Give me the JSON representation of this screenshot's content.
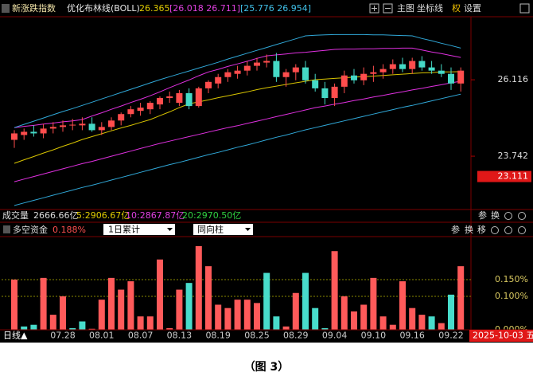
{
  "caption": "（图 3）",
  "volume_bar": {
    "label": "成交量",
    "total": "2666.66亿",
    "ma5": "5:2906.67亿",
    "ma10": "10:2867.87亿",
    "ma20": "20:2970.50亿",
    "buttons": [
      "参",
      "换"
    ]
  },
  "indicator_bar": {
    "label": "多空资金",
    "value": "0.188%",
    "dropdowns": [
      "1日累计",
      "同向柱"
    ],
    "buttons": [
      "参",
      "换",
      "移"
    ]
  },
  "chart_data": [
    {
      "type": "candlestick",
      "title": "新涨跌指数",
      "indicator": "优化布林线(BOLL)",
      "mid_label": "26.365",
      "inner_band_label": "[26.018 26.711]",
      "outer_band_label": "[25.776 26.954]",
      "toolbar": [
        "主图",
        "坐标线",
        "权",
        "设置"
      ],
      "up_color": "#ff4d4d",
      "down_color": "#45d9c6",
      "open": [
        24.25,
        24.4,
        24.5,
        24.45,
        24.6,
        24.65,
        24.7,
        24.7,
        24.75,
        24.55,
        24.65,
        24.85,
        25.05,
        25.15,
        25.2,
        25.35,
        25.55,
        25.4,
        25.7,
        25.3,
        25.85,
        26.0,
        26.2,
        26.3,
        26.4,
        26.55,
        26.65,
        26.7,
        26.2,
        26.35,
        26.5,
        26.1,
        25.85,
        25.55,
        25.9,
        26.25,
        26.1,
        26.3,
        26.35,
        26.45,
        26.6,
        26.45,
        26.7,
        26.5,
        26.4,
        26.3,
        26.0
      ],
      "high": [
        24.55,
        24.6,
        24.7,
        24.75,
        24.8,
        24.85,
        24.9,
        24.95,
        24.95,
        24.8,
        24.95,
        25.1,
        25.3,
        25.4,
        25.45,
        25.6,
        25.75,
        25.8,
        25.85,
        25.9,
        26.1,
        26.3,
        26.45,
        26.55,
        26.7,
        26.8,
        26.9,
        26.95,
        26.45,
        26.6,
        26.7,
        26.3,
        26.05,
        26.0,
        26.4,
        26.45,
        26.5,
        26.55,
        26.6,
        26.75,
        26.8,
        26.8,
        26.85,
        26.7,
        26.6,
        26.5,
        26.5
      ],
      "low": [
        24.0,
        24.25,
        24.35,
        24.3,
        24.45,
        24.5,
        24.55,
        24.55,
        24.5,
        24.4,
        24.55,
        24.7,
        24.95,
        25.0,
        25.05,
        25.2,
        25.4,
        25.3,
        25.2,
        25.25,
        25.7,
        25.85,
        26.05,
        26.15,
        26.25,
        26.4,
        26.5,
        26.05,
        25.9,
        26.1,
        26.0,
        25.75,
        25.35,
        25.3,
        25.7,
        26.0,
        25.95,
        26.05,
        26.15,
        26.3,
        26.35,
        26.3,
        26.4,
        26.3,
        26.2,
        25.8,
        25.75
      ],
      "close": [
        24.45,
        24.5,
        24.45,
        24.6,
        24.65,
        24.7,
        24.72,
        24.75,
        24.55,
        24.65,
        24.85,
        25.05,
        25.2,
        25.25,
        25.4,
        25.55,
        25.6,
        25.7,
        25.3,
        25.85,
        26.05,
        26.2,
        26.35,
        26.4,
        26.55,
        26.65,
        26.7,
        26.2,
        26.35,
        26.5,
        26.1,
        25.85,
        25.55,
        25.9,
        26.25,
        26.1,
        26.3,
        26.35,
        26.45,
        26.6,
        26.45,
        26.7,
        26.5,
        26.4,
        26.3,
        26.0,
        26.4
      ],
      "series": [
        {
          "color": "#d8c400",
          "values": [
            23.52,
            23.63,
            23.73,
            23.84,
            23.94,
            24.05,
            24.15,
            24.26,
            24.35,
            24.44,
            24.53,
            24.62,
            24.7,
            24.79,
            24.88,
            25.0,
            25.12,
            25.25,
            25.37,
            25.43,
            25.49,
            25.56,
            25.62,
            25.68,
            25.74,
            25.81,
            25.87,
            25.92,
            25.97,
            26.02,
            26.07,
            26.12,
            26.14,
            26.16,
            26.18,
            26.2,
            26.21,
            26.23,
            26.25,
            26.27,
            26.29,
            26.31,
            26.33,
            26.34,
            26.36,
            26.36,
            26.37
          ]
        },
        {
          "color": "#e030e0",
          "values": [
            24.63,
            24.67,
            24.7,
            24.74,
            24.77,
            24.81,
            24.84,
            24.88,
            24.99,
            25.09,
            25.2,
            25.3,
            25.41,
            25.51,
            25.62,
            25.74,
            25.87,
            25.99,
            26.11,
            26.24,
            26.36,
            26.44,
            26.53,
            26.61,
            26.69,
            26.78,
            26.86,
            26.89,
            26.92,
            26.95,
            26.97,
            27.0,
            27.03,
            27.06,
            27.07,
            27.07,
            27.08,
            27.08,
            27.09,
            27.09,
            27.1,
            27.1,
            27.04,
            26.98,
            26.93,
            26.87,
            26.81
          ]
        },
        {
          "color": "#e030e0",
          "values": [
            22.95,
            23.03,
            23.11,
            23.19,
            23.27,
            23.35,
            23.43,
            23.51,
            23.58,
            23.66,
            23.74,
            23.82,
            23.9,
            23.98,
            24.06,
            24.14,
            24.21,
            24.28,
            24.35,
            24.42,
            24.49,
            24.56,
            24.63,
            24.69,
            24.76,
            24.83,
            24.9,
            24.97,
            25.04,
            25.11,
            25.18,
            25.25,
            25.3,
            25.36,
            25.41,
            25.47,
            25.52,
            25.58,
            25.63,
            25.69,
            25.74,
            25.8,
            25.85,
            25.91,
            25.96,
            26.02,
            26.07
          ]
        },
        {
          "color": "#30a8d8",
          "values": [
            24.63,
            24.73,
            24.83,
            24.93,
            25.03,
            25.13,
            25.22,
            25.32,
            25.42,
            25.52,
            25.62,
            25.72,
            25.82,
            25.92,
            26.02,
            26.12,
            26.21,
            26.3,
            26.39,
            26.48,
            26.57,
            26.66,
            26.76,
            26.85,
            26.94,
            27.03,
            27.12,
            27.21,
            27.3,
            27.39,
            27.48,
            27.5,
            27.51,
            27.52,
            27.52,
            27.52,
            27.52,
            27.51,
            27.51,
            27.5,
            27.49,
            27.48,
            27.4,
            27.33,
            27.25,
            27.18,
            27.1
          ]
        },
        {
          "color": "#30a8d8",
          "values": [
            22.21,
            22.29,
            22.37,
            22.45,
            22.53,
            22.61,
            22.69,
            22.77,
            22.84,
            22.92,
            23.0,
            23.08,
            23.16,
            23.24,
            23.32,
            23.4,
            23.48,
            23.55,
            23.63,
            23.71,
            23.79,
            23.86,
            23.94,
            24.02,
            24.09,
            24.17,
            24.25,
            24.33,
            24.4,
            24.48,
            24.56,
            24.63,
            24.7,
            24.77,
            24.84,
            24.91,
            24.98,
            25.05,
            25.12,
            25.19,
            25.26,
            25.32,
            25.39,
            25.46,
            25.53,
            25.6,
            25.67
          ]
        }
      ],
      "ylim": [
        22.11,
        28.05
      ],
      "yticks": [
        26.116,
        23.742
      ],
      "highlight_tick": 23.111
    },
    {
      "type": "bar",
      "x_label": "日线▲",
      "cursor_label": "2025-10-03 五",
      "categories": [
        null,
        null,
        null,
        null,
        null,
        "07.28",
        null,
        null,
        null,
        "08.01",
        null,
        null,
        null,
        "08.07",
        null,
        null,
        null,
        "08.13",
        null,
        null,
        null,
        "08.19",
        null,
        null,
        null,
        "08.25",
        null,
        null,
        null,
        "08.29",
        null,
        null,
        null,
        "09.04",
        null,
        null,
        null,
        "09.10",
        null,
        null,
        null,
        "09.16",
        null,
        null,
        null,
        "09.22",
        null
      ],
      "values": [
        0.15,
        0.01,
        0.015,
        0.155,
        0.045,
        0.1,
        0.005,
        0.025,
        0.003,
        0.09,
        0.155,
        0.12,
        0.145,
        0.04,
        0.04,
        0.21,
        0.005,
        0.12,
        0.14,
        0.25,
        0.19,
        0.075,
        0.065,
        0.09,
        0.09,
        0.08,
        0.17,
        0.04,
        0.01,
        0.11,
        0.17,
        0.065,
        0.005,
        0.235,
        0.1,
        0.055,
        0.075,
        0.155,
        0.04,
        0.015,
        0.145,
        0.065,
        0.045,
        0.04,
        0.02,
        0.105,
        0.19
      ],
      "colors": [
        "#ff5a5a",
        "#48dccb",
        "#48dccb",
        "#ff5a5a",
        "#ff5a5a",
        "#ff5a5a",
        "#48dccb",
        "#48dccb",
        "#ff5a5a",
        "#ff5a5a",
        "#ff5a5a",
        "#ff5a5a",
        "#ff5a5a",
        "#ff5a5a",
        "#ff5a5a",
        "#ff5a5a",
        "#ff5a5a",
        "#ff5a5a",
        "#48dccb",
        "#ff5a5a",
        "#ff5a5a",
        "#ff5a5a",
        "#ff5a5a",
        "#ff5a5a",
        "#ff5a5a",
        "#ff5a5a",
        "#48dccb",
        "#48dccb",
        "#ff5a5a",
        "#ff5a5a",
        "#48dccb",
        "#48dccb",
        "#48dccb",
        "#ff5a5a",
        "#ff5a5a",
        "#ff5a5a",
        "#ff5a5a",
        "#ff5a5a",
        "#ff5a5a",
        "#ff5a5a",
        "#ff5a5a",
        "#ff5a5a",
        "#ff5a5a",
        "#48dccb",
        "#ff5a5a",
        "#48dccb",
        "#ff5a5a"
      ],
      "ylim": [
        0,
        0.276
      ],
      "yticks": [
        {
          "value": 0.15,
          "label": "0.150%"
        },
        {
          "value": 0.1,
          "label": "0.100%"
        },
        {
          "value": 0,
          "label": "0.000%"
        }
      ],
      "grid": true
    }
  ]
}
